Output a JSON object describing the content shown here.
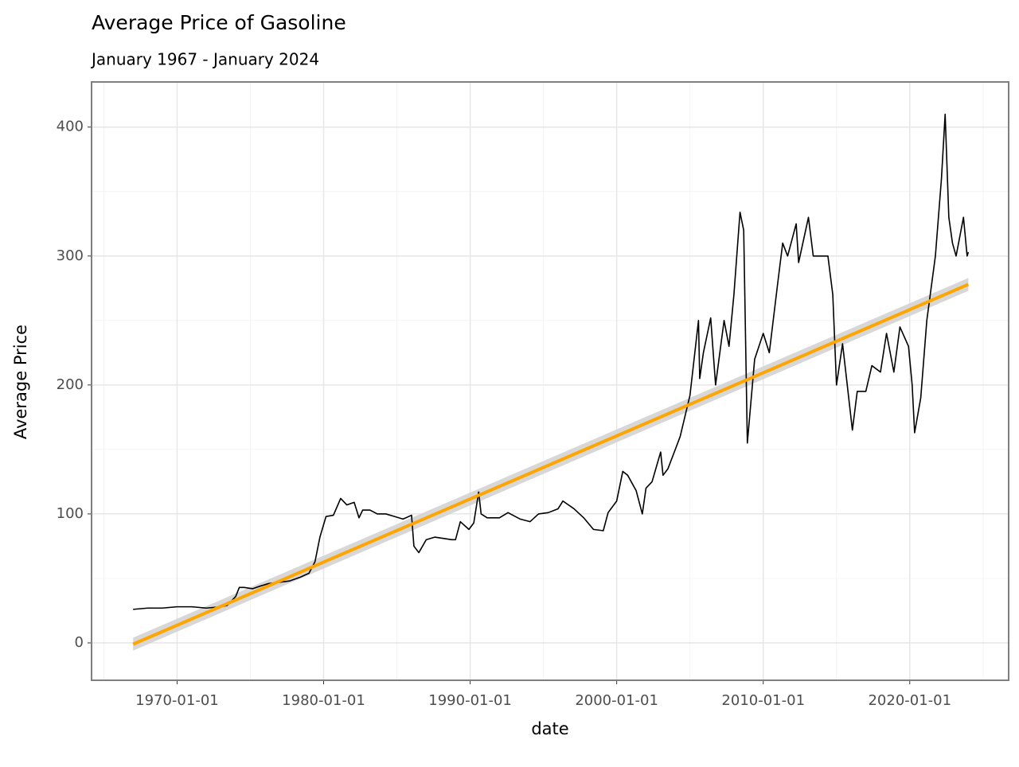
{
  "chart_data": {
    "type": "line",
    "title": "Average Price of Gasoline",
    "subtitle": "January 1967 - January 2024",
    "x_label": "date",
    "y_label": "Average Price",
    "x": [
      "1967-01-01",
      "1968-01-01",
      "1969-01-01",
      "1970-01-01",
      "1971-01-01",
      "1972-01-01",
      "1973-01-01",
      "1973-06-01",
      "1974-01-01",
      "1974-04-01",
      "1974-08-01",
      "1975-03-01",
      "1975-09-01",
      "1976-04-01",
      "1977-01-01",
      "1977-09-01",
      "1978-06-01",
      "1979-01-01",
      "1979-06-01",
      "1979-10-01",
      "1980-03-01",
      "1980-09-01",
      "1981-03-01",
      "1981-08-01",
      "1982-02-01",
      "1982-06-01",
      "1982-09-01",
      "1983-03-01",
      "1983-09-01",
      "1984-04-01",
      "1984-11-01",
      "1985-06-01",
      "1986-01-01",
      "1986-03-01",
      "1986-07-01",
      "1987-01-01",
      "1987-08-01",
      "1988-03-01",
      "1988-10-01",
      "1989-01-01",
      "1989-05-01",
      "1989-12-01",
      "1990-04-01",
      "1990-08-01",
      "1990-10-01",
      "1991-03-01",
      "1992-01-01",
      "1992-08-01",
      "1993-06-01",
      "1994-02-01",
      "1994-09-01",
      "1995-05-01",
      "1996-01-01",
      "1996-05-01",
      "1997-02-01",
      "1997-10-01",
      "1998-06-01",
      "1999-02-01",
      "1999-06-01",
      "2000-01-01",
      "2000-06-01",
      "2000-10-01",
      "2001-05-01",
      "2001-10-01",
      "2002-01-01",
      "2002-06-01",
      "2003-01-01",
      "2003-03-01",
      "2003-07-01",
      "2004-01-01",
      "2004-05-01",
      "2005-01-01",
      "2005-08-01",
      "2005-09-01",
      "2005-12-01",
      "2006-06-01",
      "2006-10-01",
      "2007-05-01",
      "2007-09-01",
      "2008-01-01",
      "2008-06-01",
      "2008-09-01",
      "2008-12-01",
      "2009-06-01",
      "2010-01-01",
      "2010-06-01",
      "2011-01-01",
      "2011-05-01",
      "2011-09-01",
      "2012-04-01",
      "2012-06-01",
      "2013-02-01",
      "2013-06-01",
      "2014-01-01",
      "2014-06-01",
      "2014-10-01",
      "2015-01-01",
      "2015-06-01",
      "2016-02-01",
      "2016-06-01",
      "2017-01-01",
      "2017-06-01",
      "2018-01-01",
      "2018-06-01",
      "2018-12-01",
      "2019-05-01",
      "2019-12-01",
      "2020-03-01",
      "2020-05-01",
      "2020-10-01",
      "2021-03-01",
      "2021-10-01",
      "2022-03-01",
      "2022-06-01",
      "2022-09-01",
      "2022-12-01",
      "2023-03-01",
      "2023-09-01",
      "2023-12-01",
      "2024-01-01"
    ],
    "series": [
      {
        "color": "#000000",
        "values": [
          26,
          27,
          27,
          28,
          28,
          27,
          28,
          29,
          36,
          43,
          43,
          42,
          44,
          46,
          47,
          48,
          51,
          54,
          63,
          82,
          98,
          99,
          112,
          107,
          109,
          97,
          103,
          103,
          100,
          100,
          98,
          96,
          99,
          75,
          70,
          80,
          82,
          81,
          80,
          80,
          94,
          88,
          93,
          117,
          100,
          97,
          97,
          101,
          96,
          94,
          100,
          101,
          104,
          110,
          104,
          97,
          88,
          87,
          101,
          110,
          133,
          130,
          118,
          100,
          120,
          125,
          148,
          130,
          135,
          150,
          160,
          192,
          250,
          205,
          225,
          252,
          200,
          250,
          230,
          270,
          334,
          320,
          155,
          220,
          240,
          225,
          280,
          310,
          300,
          325,
          295,
          330,
          300,
          300,
          300,
          270,
          200,
          232,
          165,
          195,
          195,
          215,
          210,
          240,
          210,
          245,
          230,
          200,
          163,
          190,
          250,
          300,
          360,
          410,
          330,
          310,
          300,
          330,
          300,
          303
        ]
      }
    ],
    "trend": {
      "x": [
        "1967-01-01",
        "2024-01-01"
      ],
      "values": [
        -1,
        278
      ],
      "lower": [
        -6,
        273
      ],
      "upper": [
        4,
        283
      ],
      "color": "#ffa500",
      "band_color": "#d3d3d3"
    },
    "xlim": [
      "1964-03-01",
      "2026-10-01"
    ],
    "xticks": [
      {
        "value": "1970-01-01",
        "label": "1970-01-01"
      },
      {
        "value": "1980-01-01",
        "label": "1980-01-01"
      },
      {
        "value": "1990-01-01",
        "label": "1990-01-01"
      },
      {
        "value": "2000-01-01",
        "label": "2000-01-01"
      },
      {
        "value": "2010-01-01",
        "label": "2010-01-01"
      },
      {
        "value": "2020-01-01",
        "label": "2020-01-01"
      }
    ],
    "xminor": [
      "1965-01-01",
      "1975-01-01",
      "1985-01-01",
      "1995-01-01",
      "2005-01-01",
      "2015-01-01",
      "2025-01-01"
    ],
    "ylim": [
      -29,
      435
    ],
    "yticks": [
      0,
      100,
      200,
      300,
      400
    ],
    "yminor": [
      50,
      150,
      250,
      350
    ],
    "grid": true
  }
}
